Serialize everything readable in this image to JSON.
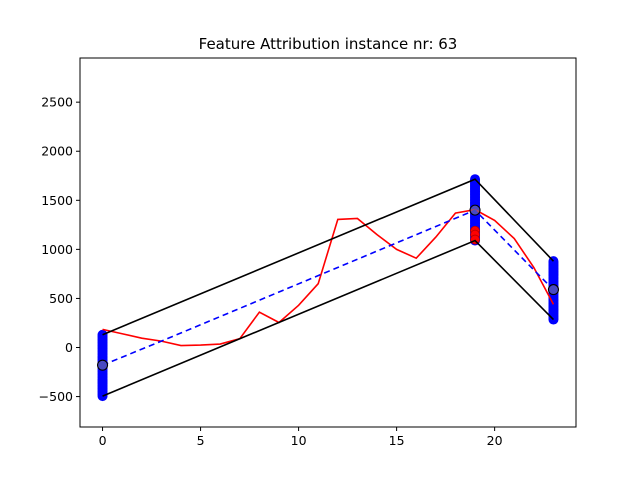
{
  "chart_data": {
    "type": "line",
    "title": "Feature Attribution instance nr: 63",
    "xlabel": "",
    "ylabel": "",
    "xlim": [
      -1.15,
      24.15
    ],
    "ylim": [
      -810,
      2950
    ],
    "x_ticks": [
      0,
      5,
      10,
      15,
      20
    ],
    "y_ticks": [
      -500,
      0,
      500,
      1000,
      1500,
      2000,
      2500
    ],
    "grid": false,
    "series": [
      {
        "style": "red-solid",
        "color": "#ff0000",
        "x": [
          0,
          1,
          2,
          3,
          4,
          5,
          6,
          7,
          8,
          9,
          10,
          11,
          12,
          13,
          14,
          15,
          16,
          17,
          18,
          19,
          20,
          21,
          22,
          23
        ],
        "y": [
          185,
          140,
          95,
          65,
          20,
          25,
          35,
          90,
          360,
          255,
          430,
          650,
          1305,
          1315,
          1150,
          1000,
          910,
          1125,
          1370,
          1405,
          1295,
          1110,
          815,
          440
        ]
      },
      {
        "style": "blue-dashed",
        "color": "#0000ff",
        "x": [
          0,
          3,
          19,
          22,
          23
        ],
        "y": [
          -180,
          65,
          1400,
          790,
          590
        ]
      },
      {
        "style": "black-upper",
        "color": "#000000",
        "x": [
          0,
          19,
          23
        ],
        "y": [
          130,
          1715,
          880
        ]
      },
      {
        "style": "black-lower",
        "color": "#000000",
        "x": [
          0,
          19,
          23
        ],
        "y": [
          -495,
          1090,
          285
        ]
      }
    ],
    "bands": [
      {
        "x": 0,
        "y_min": -495,
        "y_max": 130
      },
      {
        "x": 19,
        "y_min": 1090,
        "y_max": 1715
      },
      {
        "x": 23,
        "y_min": 285,
        "y_max": 880
      }
    ],
    "center_points": [
      {
        "x": 0,
        "y": -180
      },
      {
        "x": 19,
        "y": 1400
      },
      {
        "x": 23,
        "y": 590
      }
    ],
    "red_points": [
      {
        "x": 19,
        "y": 1190
      },
      {
        "x": 19,
        "y": 1150
      },
      {
        "x": 19,
        "y": 1100
      }
    ],
    "colors": {
      "band": "#0000ff",
      "red": "#ff0000",
      "axis": "#000000"
    }
  }
}
